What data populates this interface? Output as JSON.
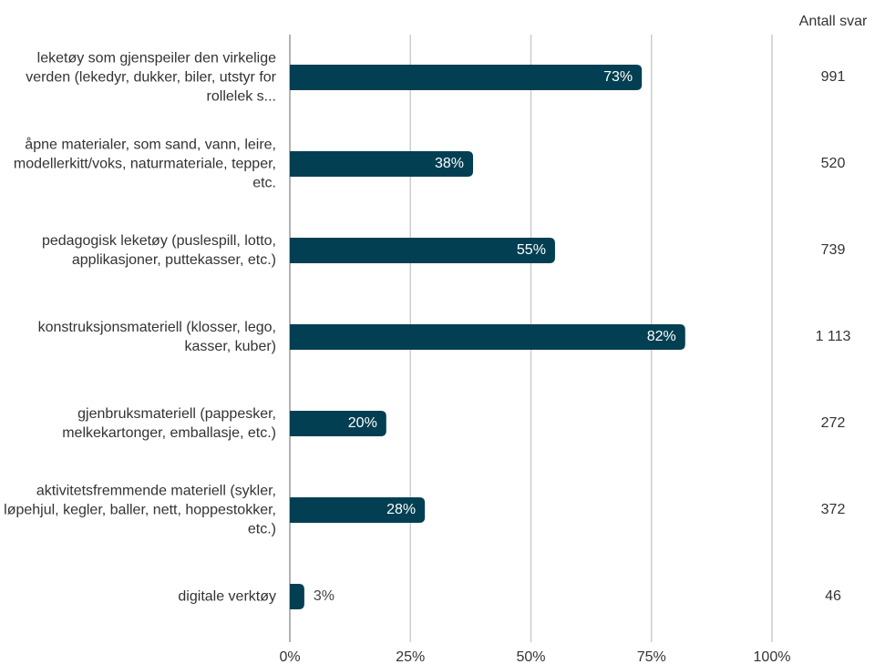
{
  "chart_data": {
    "type": "hbar",
    "categories": [
      "leketøy som gjenspeiler den virkelige verden (lekedyr, dukker, biler, utstyr for rollelek s...",
      "åpne materialer, som sand, vann, leire, modellerkitt/voks, naturmateriale, tepper, etc.",
      "pedagogisk leketøy (puslespill, lotto, applikasjoner, puttekasser, etc.)",
      "konstruksjonsmateriell (klosser, lego, kasser, kuber)",
      "gjenbruksmateriell (pappesker, melkekartonger, emballasje, etc.)",
      "aktivitetsfremmende materiell (sykler, løpehjul, kegler, baller, nett, hoppestokker, etc.)",
      "digitale verktøy"
    ],
    "values": [
      73,
      38,
      55,
      82,
      20,
      28,
      3
    ],
    "value_labels": [
      "73%",
      "38%",
      "55%",
      "82%",
      "20%",
      "28%",
      "3%"
    ],
    "color": "#033f52",
    "xlim": [
      0,
      100
    ],
    "xticks": [
      {
        "value": 0,
        "label": "0%"
      },
      {
        "value": 25,
        "label": "25%"
      },
      {
        "value": 50,
        "label": "50%"
      },
      {
        "value": 75,
        "label": "75%"
      },
      {
        "value": 100,
        "label": "100%"
      }
    ],
    "grid": true,
    "count_title": "Antall svar",
    "counts": [
      991,
      520,
      739,
      {
        "value": 1113,
        "label": "1 113"
      },
      272,
      372,
      46
    ]
  }
}
